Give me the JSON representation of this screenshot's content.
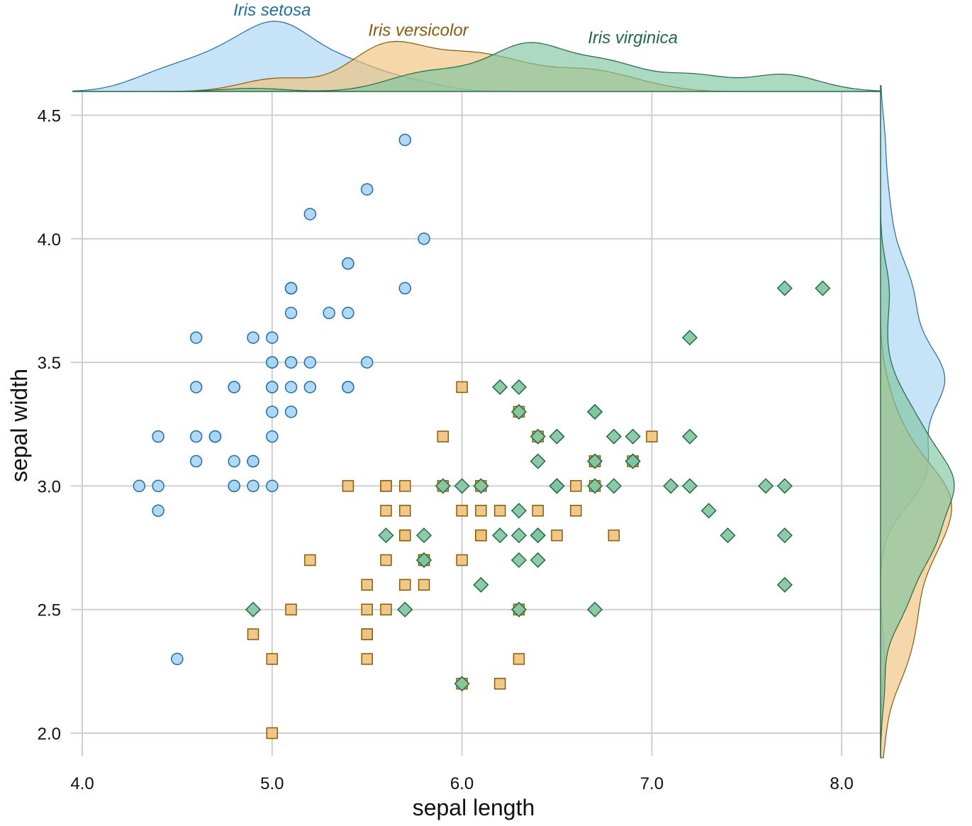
{
  "chart_data": {
    "type": "scatter",
    "title": "",
    "xlabel": "sepal length",
    "ylabel": "sepal width",
    "xlim": [
      3.9,
      8.2
    ],
    "ylim": [
      1.9,
      4.65
    ],
    "xticks": [
      4.0,
      5.0,
      6.0,
      7.0,
      8.0
    ],
    "xtick_labels": [
      "4.0",
      "5.0",
      "6.0",
      "7.0",
      "8.0"
    ],
    "yticks": [
      2.0,
      2.5,
      3.0,
      3.5,
      4.0,
      4.5
    ],
    "ytick_labels": [
      "2.0",
      "2.5",
      "3.0",
      "3.5",
      "4.0",
      "4.5"
    ],
    "grid": true,
    "marginal_density": true,
    "series": [
      {
        "name": "Iris setosa",
        "marker": "circle",
        "color": "#1f6fa5",
        "fill": "#a9d4f3",
        "points": [
          [
            5.1,
            3.5
          ],
          [
            4.9,
            3.0
          ],
          [
            4.7,
            3.2
          ],
          [
            4.6,
            3.1
          ],
          [
            5.0,
            3.6
          ],
          [
            5.4,
            3.9
          ],
          [
            4.6,
            3.4
          ],
          [
            5.0,
            3.4
          ],
          [
            4.4,
            2.9
          ],
          [
            4.9,
            3.1
          ],
          [
            5.4,
            3.7
          ],
          [
            4.8,
            3.4
          ],
          [
            4.8,
            3.0
          ],
          [
            4.3,
            3.0
          ],
          [
            5.8,
            4.0
          ],
          [
            5.7,
            4.4
          ],
          [
            5.4,
            3.9
          ],
          [
            5.1,
            3.5
          ],
          [
            5.7,
            3.8
          ],
          [
            5.1,
            3.8
          ],
          [
            5.4,
            3.4
          ],
          [
            5.1,
            3.7
          ],
          [
            4.6,
            3.6
          ],
          [
            5.1,
            3.3
          ],
          [
            4.8,
            3.4
          ],
          [
            5.0,
            3.0
          ],
          [
            5.0,
            3.4
          ],
          [
            5.2,
            3.5
          ],
          [
            5.2,
            3.4
          ],
          [
            4.7,
            3.2
          ],
          [
            4.8,
            3.1
          ],
          [
            5.4,
            3.4
          ],
          [
            5.2,
            4.1
          ],
          [
            5.5,
            4.2
          ],
          [
            4.9,
            3.1
          ],
          [
            5.0,
            3.2
          ],
          [
            5.5,
            3.5
          ],
          [
            4.9,
            3.6
          ],
          [
            4.4,
            3.0
          ],
          [
            5.1,
            3.4
          ],
          [
            5.0,
            3.5
          ],
          [
            4.5,
            2.3
          ],
          [
            4.4,
            3.2
          ],
          [
            5.0,
            3.5
          ],
          [
            5.1,
            3.8
          ],
          [
            4.8,
            3.0
          ],
          [
            5.1,
            3.8
          ],
          [
            4.6,
            3.2
          ],
          [
            5.3,
            3.7
          ],
          [
            5.0,
            3.3
          ]
        ]
      },
      {
        "name": "Iris versicolor",
        "marker": "square",
        "color": "#8a5a0b",
        "fill": "#f0c27b",
        "points": [
          [
            7.0,
            3.2
          ],
          [
            6.4,
            3.2
          ],
          [
            6.9,
            3.1
          ],
          [
            5.5,
            2.3
          ],
          [
            6.5,
            2.8
          ],
          [
            5.7,
            2.8
          ],
          [
            6.3,
            3.3
          ],
          [
            4.9,
            2.4
          ],
          [
            6.6,
            2.9
          ],
          [
            5.2,
            2.7
          ],
          [
            5.0,
            2.0
          ],
          [
            5.9,
            3.0
          ],
          [
            6.0,
            2.2
          ],
          [
            6.1,
            2.9
          ],
          [
            5.6,
            2.9
          ],
          [
            6.7,
            3.1
          ],
          [
            5.6,
            3.0
          ],
          [
            5.8,
            2.7
          ],
          [
            6.2,
            2.2
          ],
          [
            5.6,
            2.5
          ],
          [
            5.9,
            3.2
          ],
          [
            6.1,
            2.8
          ],
          [
            6.3,
            2.5
          ],
          [
            6.1,
            2.8
          ],
          [
            6.4,
            2.9
          ],
          [
            6.6,
            3.0
          ],
          [
            6.8,
            2.8
          ],
          [
            6.7,
            3.0
          ],
          [
            6.0,
            2.9
          ],
          [
            5.7,
            2.6
          ],
          [
            5.5,
            2.4
          ],
          [
            5.5,
            2.4
          ],
          [
            5.8,
            2.7
          ],
          [
            6.0,
            2.7
          ],
          [
            5.4,
            3.0
          ],
          [
            6.0,
            3.4
          ],
          [
            6.7,
            3.1
          ],
          [
            6.3,
            2.3
          ],
          [
            5.6,
            3.0
          ],
          [
            5.5,
            2.5
          ],
          [
            5.5,
            2.6
          ],
          [
            6.1,
            3.0
          ],
          [
            5.8,
            2.6
          ],
          [
            5.0,
            2.3
          ],
          [
            5.6,
            2.7
          ],
          [
            5.7,
            3.0
          ],
          [
            5.7,
            2.9
          ],
          [
            6.2,
            2.9
          ],
          [
            5.1,
            2.5
          ],
          [
            5.7,
            2.8
          ]
        ]
      },
      {
        "name": "Iris virginica",
        "marker": "diamond",
        "color": "#1e6b45",
        "fill": "#7fc4a0",
        "points": [
          [
            6.3,
            3.3
          ],
          [
            5.8,
            2.7
          ],
          [
            7.1,
            3.0
          ],
          [
            6.3,
            2.9
          ],
          [
            6.5,
            3.0
          ],
          [
            7.6,
            3.0
          ],
          [
            4.9,
            2.5
          ],
          [
            7.3,
            2.9
          ],
          [
            6.7,
            2.5
          ],
          [
            7.2,
            3.6
          ],
          [
            6.5,
            3.2
          ],
          [
            6.4,
            2.7
          ],
          [
            6.8,
            3.0
          ],
          [
            5.7,
            2.5
          ],
          [
            5.8,
            2.8
          ],
          [
            6.4,
            3.2
          ],
          [
            6.5,
            3.0
          ],
          [
            7.7,
            3.8
          ],
          [
            7.7,
            2.6
          ],
          [
            6.0,
            2.2
          ],
          [
            6.9,
            3.2
          ],
          [
            5.6,
            2.8
          ],
          [
            7.7,
            2.8
          ],
          [
            6.3,
            2.7
          ],
          [
            6.7,
            3.3
          ],
          [
            7.2,
            3.2
          ],
          [
            6.2,
            2.8
          ],
          [
            6.1,
            3.0
          ],
          [
            6.4,
            2.8
          ],
          [
            7.2,
            3.0
          ],
          [
            7.4,
            2.8
          ],
          [
            7.9,
            3.8
          ],
          [
            6.4,
            2.8
          ],
          [
            6.3,
            2.8
          ],
          [
            6.1,
            2.6
          ],
          [
            7.7,
            3.0
          ],
          [
            6.3,
            3.4
          ],
          [
            6.4,
            3.1
          ],
          [
            6.0,
            3.0
          ],
          [
            6.9,
            3.1
          ],
          [
            6.7,
            3.1
          ],
          [
            6.9,
            3.1
          ],
          [
            5.8,
            2.7
          ],
          [
            6.8,
            3.2
          ],
          [
            6.7,
            3.3
          ],
          [
            6.7,
            3.0
          ],
          [
            6.3,
            2.5
          ],
          [
            6.5,
            3.0
          ],
          [
            6.2,
            3.4
          ],
          [
            5.9,
            3.0
          ]
        ]
      }
    ],
    "annotations": [
      {
        "series": 0,
        "text": "Iris setosa",
        "x": 5.0,
        "density_anchor": 1.0
      },
      {
        "series": 1,
        "text": "Iris versicolor",
        "x": 5.77,
        "density_anchor": 1.0
      },
      {
        "series": 2,
        "text": "Iris virginica",
        "x": 6.9,
        "density_anchor": 0.87
      }
    ]
  }
}
